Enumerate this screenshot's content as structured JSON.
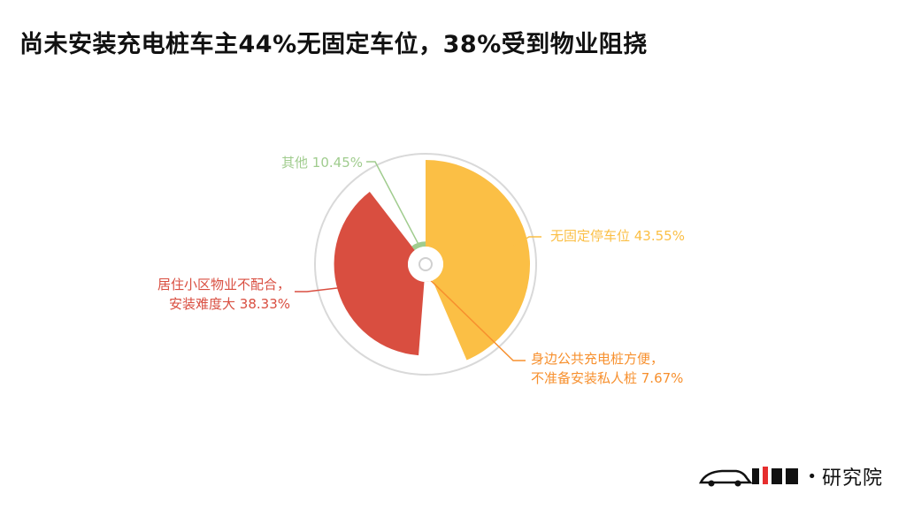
{
  "title": "尚未安装充电桩车主44%无固定车位，38%受到物业阻挠",
  "brand": {
    "dot": "•",
    "text": "研究院"
  },
  "chart_data": {
    "type": "pie",
    "variant": "rose",
    "slices": [
      {
        "label": "无固定停车位 43.55%",
        "lines": [
          "无固定停车位 43.55%"
        ],
        "value": 43.55,
        "color": "#FBBF45"
      },
      {
        "label": "身边公共充电桩方便，不准备安装私人桩 7.67%",
        "lines": [
          "身边公共充电桩方便，",
          "不准备安装私人桩 7.67%"
        ],
        "value": 7.67,
        "color": "#F7902E"
      },
      {
        "label": "居住小区物业不配合，安装难度大 38.33%",
        "lines": [
          "居住小区物业不配合，",
          "安装难度大 38.33%"
        ],
        "value": 38.33,
        "color": "#D94E40"
      },
      {
        "label": "其他 10.45%",
        "lines": [
          "其他 10.45%"
        ],
        "value": 10.45,
        "color": "#A0CC8E"
      }
    ]
  }
}
